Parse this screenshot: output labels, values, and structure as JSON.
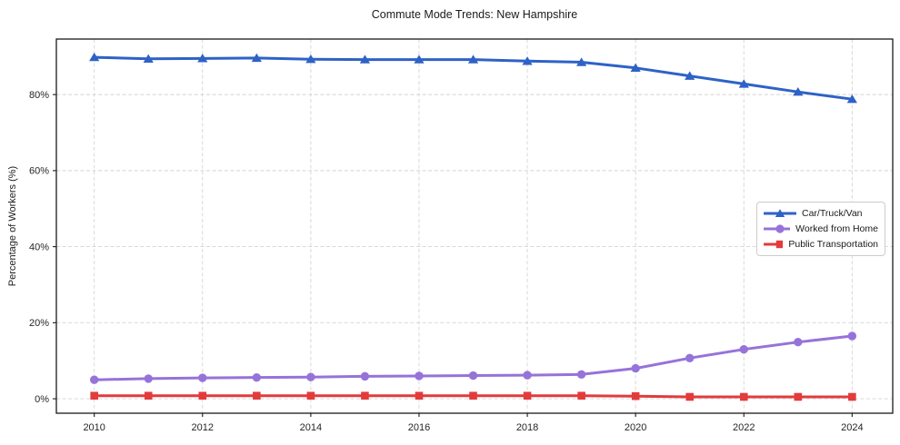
{
  "chart_data": {
    "type": "line",
    "title": "Commute Mode Trends: New Hampshire",
    "xlabel": "",
    "ylabel": "Percentage of Workers (%)",
    "x": [
      2010,
      2011,
      2012,
      2013,
      2014,
      2015,
      2016,
      2017,
      2018,
      2019,
      2020,
      2021,
      2022,
      2023,
      2024
    ],
    "x_ticks": [
      2010,
      2012,
      2014,
      2016,
      2018,
      2020,
      2022,
      2024
    ],
    "x_tick_labels": [
      "2010",
      "2012",
      "2014",
      "2016",
      "2018",
      "2020",
      "2022",
      "2024"
    ],
    "y_ticks": [
      0,
      20,
      40,
      60,
      80
    ],
    "y_tick_labels": [
      "0%",
      "20%",
      "40%",
      "60%",
      "80%"
    ],
    "xlim": [
      2009.3,
      2024.75
    ],
    "ylim": [
      -3.8,
      94.6
    ],
    "grid": true,
    "grid_style": "dashed",
    "legend_position": "center right",
    "series": [
      {
        "name": "Car/Truck/Van",
        "color": "#2e62c6",
        "marker": "triangle",
        "values": [
          89.8,
          89.4,
          89.5,
          89.6,
          89.3,
          89.2,
          89.2,
          89.2,
          88.8,
          88.5,
          87.0,
          84.9,
          82.8,
          80.7,
          78.8
        ]
      },
      {
        "name": "Worked from Home",
        "color": "#9673d9",
        "marker": "circle",
        "values": [
          5.0,
          5.3,
          5.5,
          5.6,
          5.7,
          5.9,
          6.0,
          6.1,
          6.2,
          6.4,
          8.0,
          10.7,
          13.0,
          14.9,
          16.5
        ]
      },
      {
        "name": "Public Transportation",
        "color": "#e23b3b",
        "marker": "square",
        "values": [
          0.8,
          0.8,
          0.8,
          0.8,
          0.8,
          0.8,
          0.8,
          0.8,
          0.8,
          0.8,
          0.7,
          0.5,
          0.5,
          0.5,
          0.5
        ]
      }
    ]
  },
  "style": {
    "grid_color": "#d4d4d4",
    "spine_color": "#1a1a1a",
    "tick_label_color": "#262626",
    "legend_border_color": "#cccccc"
  }
}
